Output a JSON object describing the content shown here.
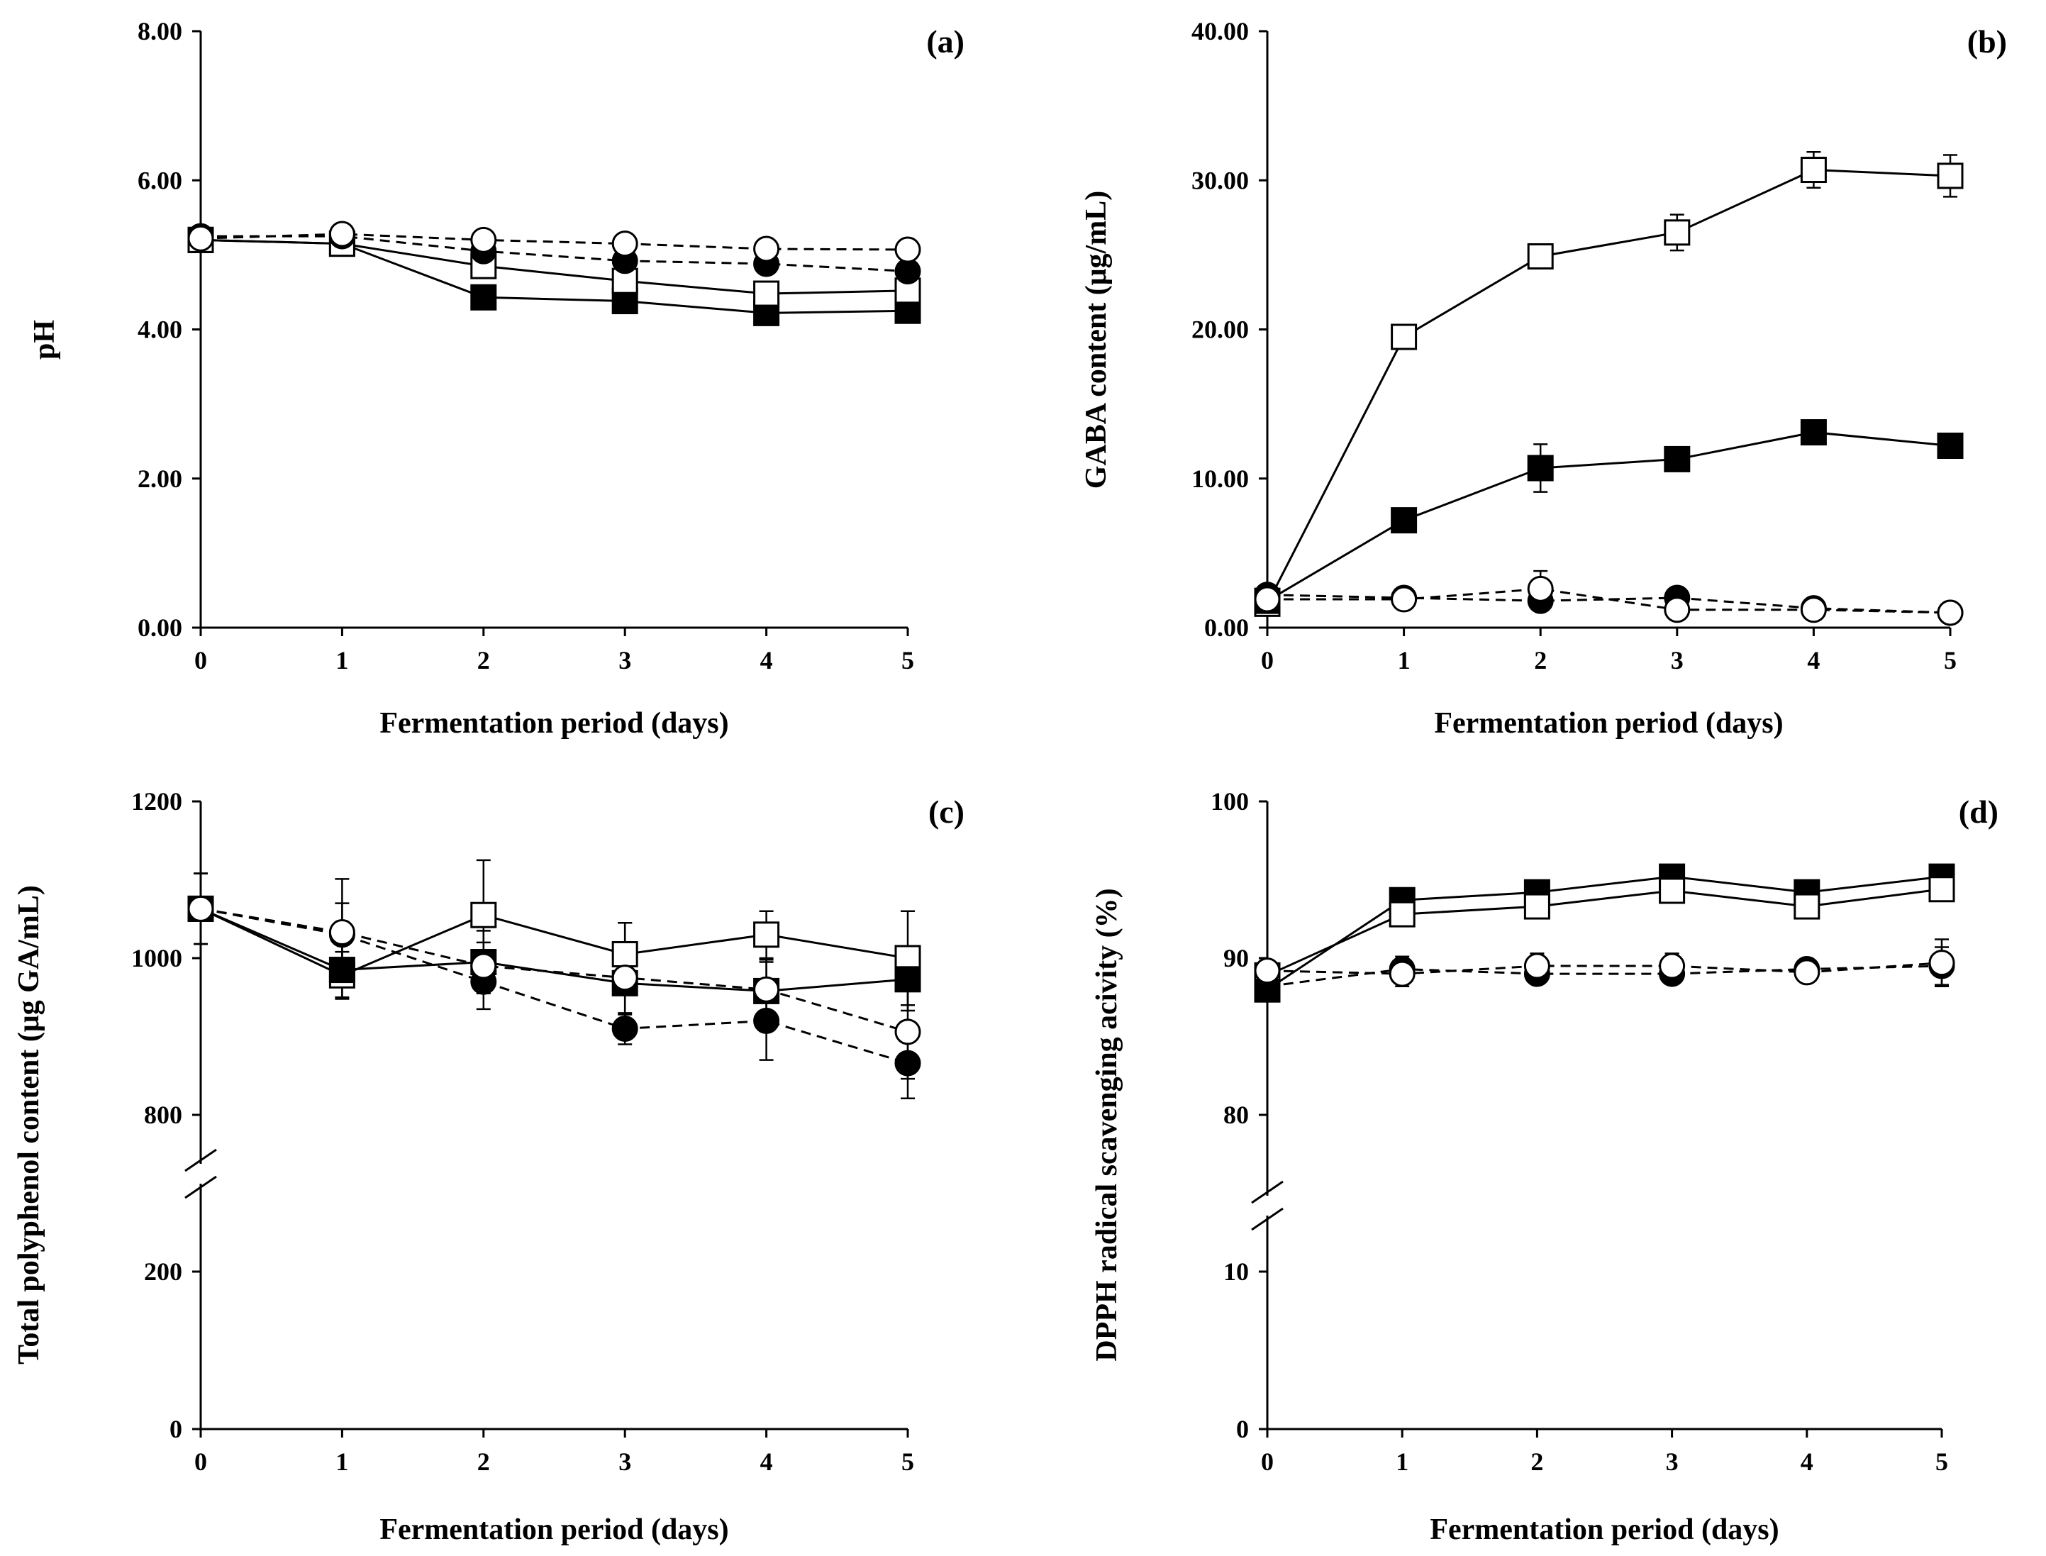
{
  "chart_data": [
    {
      "type": "line",
      "panel_label": "(a)",
      "xlabel": "Fermentation period (days)",
      "ylabel": "pH",
      "ylim": [
        0,
        8
      ],
      "yticks": [
        "0.00",
        "2.00",
        "4.00",
        "6.00",
        "8.00"
      ],
      "x": [
        0,
        1,
        2,
        3,
        4,
        5
      ],
      "xticks": [
        "0",
        "1",
        "2",
        "3",
        "4",
        "5"
      ],
      "series": [
        {
          "marker": "square-filled",
          "line": "solid",
          "values": [
            5.2,
            5.15,
            4.43,
            4.38,
            4.22,
            4.25
          ],
          "err": [
            0.05,
            0.03,
            0.04,
            0.03,
            0.03,
            0.03
          ]
        },
        {
          "marker": "square-open",
          "line": "solid",
          "values": [
            5.2,
            5.15,
            4.85,
            4.65,
            4.48,
            4.52
          ],
          "err": [
            0.05,
            0.03,
            0.04,
            0.03,
            0.03,
            0.03
          ]
        },
        {
          "marker": "circle-filled",
          "line": "dashed",
          "values": [
            5.25,
            5.25,
            5.05,
            4.92,
            4.88,
            4.78
          ],
          "err": [
            0.03,
            0.03,
            0.03,
            0.03,
            0.03,
            0.03
          ]
        },
        {
          "marker": "circle-open",
          "line": "dashed",
          "values": [
            5.22,
            5.28,
            5.2,
            5.15,
            5.08,
            5.07
          ],
          "err": [
            0.03,
            0.03,
            0.03,
            0.03,
            0.03,
            0.03
          ]
        }
      ]
    },
    {
      "type": "line",
      "panel_label": "(b)",
      "xlabel": "Fermentation period (days)",
      "ylabel": "GABA content (μg/mL)",
      "ylim": [
        0,
        40
      ],
      "yticks": [
        "0.00",
        "10.00",
        "20.00",
        "30.00",
        "40.00"
      ],
      "x": [
        0,
        1,
        2,
        3,
        4,
        5
      ],
      "xticks": [
        "0",
        "1",
        "2",
        "3",
        "4",
        "5"
      ],
      "series": [
        {
          "marker": "square-open",
          "line": "solid",
          "values": [
            1.6,
            19.5,
            24.9,
            26.5,
            30.7,
            30.3
          ],
          "err": [
            0.3,
            0.5,
            0.5,
            1.2,
            1.2,
            1.4
          ]
        },
        {
          "marker": "square-filled",
          "line": "solid",
          "values": [
            1.8,
            7.2,
            10.7,
            11.3,
            13.1,
            12.2
          ],
          "err": [
            0.3,
            0.5,
            1.6,
            0.5,
            0.8,
            0.5
          ]
        },
        {
          "marker": "circle-filled",
          "line": "dashed",
          "values": [
            2.2,
            2.0,
            1.8,
            2.0,
            1.3,
            1.0
          ],
          "err": [
            0.2,
            0.3,
            0.4,
            0.3,
            0.2,
            0.2
          ]
        },
        {
          "marker": "circle-open",
          "line": "dashed",
          "values": [
            1.9,
            1.9,
            2.6,
            1.2,
            1.2,
            1.0
          ],
          "err": [
            0.2,
            0.3,
            1.2,
            0.3,
            0.3,
            0.2
          ]
        }
      ]
    },
    {
      "type": "line",
      "panel_label": "(c)",
      "xlabel": "Fermentation period (days)",
      "ylabel": "Total polyphenol content (μg GA/mL)",
      "axis_break": true,
      "yticks": [
        "0",
        "200",
        "800",
        "1000",
        "1200"
      ],
      "x": [
        0,
        1,
        2,
        3,
        4,
        5
      ],
      "xticks": [
        "0",
        "1",
        "2",
        "3",
        "4",
        "5"
      ],
      "series": [
        {
          "marker": "square-open",
          "line": "solid",
          "values": [
            1063,
            978,
            1055,
            1005,
            1030,
            1000
          ],
          "err": [
            45,
            30,
            70,
            40,
            30,
            60
          ]
        },
        {
          "marker": "square-filled",
          "line": "solid",
          "values": [
            1063,
            985,
            995,
            968,
            958,
            973
          ],
          "err": [
            45,
            35,
            40,
            40,
            40,
            40
          ]
        },
        {
          "marker": "circle-filled",
          "line": "dashed",
          "values": [
            1063,
            1030,
            970,
            910,
            920,
            866
          ],
          "err": [
            45,
            40,
            35,
            20,
            50,
            45
          ]
        },
        {
          "marker": "circle-open",
          "line": "dashed",
          "values": [
            1063,
            1033,
            990,
            975,
            960,
            906
          ],
          "err": [
            45,
            68,
            30,
            70,
            35,
            60
          ]
        }
      ]
    },
    {
      "type": "line",
      "panel_label": "(d)",
      "xlabel": "Fermentation period (days)",
      "ylabel": "DPPH radical scavenging acivity (%)",
      "axis_break": true,
      "yticks": [
        "0",
        "10",
        "80",
        "90",
        "100"
      ],
      "x": [
        0,
        1,
        2,
        3,
        4,
        5
      ],
      "xticks": [
        "0",
        "1",
        "2",
        "3",
        "4",
        "5"
      ],
      "series": [
        {
          "marker": "square-filled",
          "line": "solid",
          "values": [
            88.0,
            93.7,
            94.2,
            95.2,
            94.2,
            95.2
          ],
          "err": [
            0.3,
            0.3,
            0.3,
            0.3,
            0.3,
            0.3
          ]
        },
        {
          "marker": "square-open",
          "line": "solid",
          "values": [
            88.9,
            92.8,
            93.3,
            94.3,
            93.3,
            94.4
          ],
          "err": [
            0.3,
            0.3,
            0.3,
            0.3,
            0.3,
            0.3
          ]
        },
        {
          "marker": "circle-filled",
          "line": "dashed",
          "values": [
            88.2,
            89.3,
            89.0,
            89.0,
            89.3,
            89.5
          ],
          "err": [
            0.5,
            0.8,
            0.6,
            0.6,
            0.6,
            1.2
          ]
        },
        {
          "marker": "circle-open",
          "line": "dashed",
          "values": [
            89.2,
            89.0,
            89.5,
            89.5,
            89.1,
            89.7
          ],
          "err": [
            0.5,
            0.8,
            0.8,
            0.8,
            0.5,
            1.5
          ]
        }
      ]
    }
  ]
}
